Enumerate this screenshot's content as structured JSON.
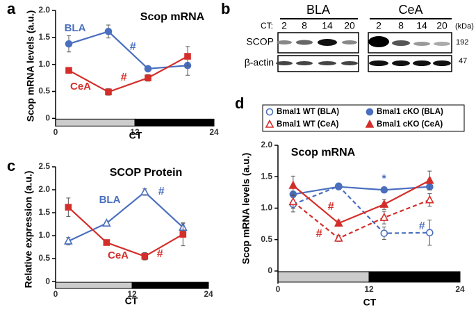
{
  "chart_data": [
    {
      "type": "line",
      "panel": "a",
      "title": "Scop mRNA",
      "ylabel": "Scop mRNA levels (a.u.)",
      "xlabel": "CT",
      "x": [
        2,
        8,
        14,
        20
      ],
      "xlim": [
        0,
        24
      ],
      "xticks": [
        0,
        12,
        24
      ],
      "ylim": [
        -0.15,
        2.0
      ],
      "yticks": [
        0,
        0.5,
        {
          "value": 1,
          "label": "1.0"
        },
        1.5,
        {
          "value": 2,
          "label": "2.0"
        }
      ],
      "phases": [
        {
          "start": 0,
          "end": 12,
          "color": "#cccccc"
        },
        {
          "start": 12,
          "end": 24,
          "color": "#000000"
        }
      ],
      "series": [
        {
          "name": "BLA",
          "color": "#4a6fbf",
          "marker": "circle-filled",
          "dash": false,
          "values": [
            1.38,
            1.61,
            0.92,
            0.98
          ],
          "errors": [
            0.15,
            0.12,
            0.05,
            0.18
          ]
        },
        {
          "name": "CeA",
          "color": "#d42e2a",
          "marker": "square-filled",
          "dash": false,
          "values": [
            0.89,
            0.49,
            0.75,
            1.15
          ],
          "errors": [
            0.04,
            0.06,
            0.06,
            0.18
          ]
        }
      ],
      "annotations": [
        {
          "text": "#",
          "color": "#4a6fbf"
        },
        {
          "text": "#",
          "color": "#d42e2a"
        }
      ]
    },
    {
      "type": "line",
      "panel": "c",
      "title": "SCOP Protein",
      "ylabel": "Relative expression (a.u.)",
      "xlabel": "CT",
      "x": [
        2,
        8,
        14,
        20
      ],
      "xlim": [
        0,
        24
      ],
      "xticks": [
        0,
        12,
        24
      ],
      "ylim": [
        -0.15,
        2.5
      ],
      "yticks": [
        0,
        0.5,
        {
          "value": 1,
          "label": "1.0"
        },
        1.5,
        {
          "value": 2,
          "label": "2.0"
        },
        2.5
      ],
      "phases": [
        {
          "start": 0,
          "end": 12,
          "color": "#cccccc"
        },
        {
          "start": 12,
          "end": 24,
          "color": "#000000"
        }
      ],
      "series": [
        {
          "name": "BLA",
          "color": "#4a6fbf",
          "marker": "triangle-open",
          "dash": false,
          "values": [
            0.88,
            1.27,
            1.95,
            1.18
          ],
          "errors": [
            0.08,
            0.03,
            0.07,
            0.08
          ]
        },
        {
          "name": "CeA",
          "color": "#d42e2a",
          "marker": "square-filled",
          "dash": false,
          "values": [
            1.62,
            0.85,
            0.55,
            1.03
          ],
          "errors": [
            0.2,
            0.03,
            0.08,
            0.25
          ]
        }
      ],
      "annotations": [
        {
          "text": "#",
          "color": "#4a6fbf"
        },
        {
          "text": "#",
          "color": "#d42e2a"
        }
      ]
    },
    {
      "type": "line",
      "panel": "d",
      "title": "Scop mRNA",
      "ylabel": "Scop mRNA levels (a.u.)",
      "xlabel": "CT",
      "x": [
        2,
        8,
        14,
        20
      ],
      "xlim": [
        0,
        24
      ],
      "xticks": [
        0,
        12,
        24
      ],
      "ylim": [
        -0.2,
        2.0
      ],
      "yticks": [
        0,
        0.5,
        {
          "value": 1,
          "label": "1.0"
        },
        1.5,
        {
          "value": 2,
          "label": "2.0"
        }
      ],
      "phases": [
        {
          "start": 0,
          "end": 12,
          "color": "#cccccc"
        },
        {
          "start": 12,
          "end": 24,
          "color": "#000000"
        }
      ],
      "series": [
        {
          "name": "Bmal1 WT (BLA)",
          "color": "#4a6fbf",
          "marker": "circle-open",
          "dash": true,
          "values": [
            1.06,
            1.35,
            0.6,
            0.61
          ],
          "errors": [
            0.12,
            0.03,
            0.1,
            0.2
          ]
        },
        {
          "name": "Bmal1 cKO (BLA)",
          "color": "#4a6fbf",
          "marker": "circle-filled",
          "dash": false,
          "values": [
            1.22,
            1.34,
            1.29,
            1.34
          ],
          "errors": [
            0.05,
            0.03,
            0.03,
            0.05
          ]
        },
        {
          "name": "Bmal1 WT (CeA)",
          "color": "#d42e2a",
          "marker": "triangle-open",
          "dash": true,
          "values": [
            1.1,
            0.52,
            0.85,
            1.13
          ],
          "errors": [
            0.1,
            0.05,
            0.1,
            0.1
          ]
        },
        {
          "name": "Bmal1 cKO (CeA)",
          "color": "#d42e2a",
          "marker": "triangle-filled",
          "dash": false,
          "values": [
            1.36,
            0.76,
            1.06,
            1.44
          ],
          "errors": [
            0.15,
            0.05,
            0.08,
            0.15
          ]
        }
      ],
      "legend": true,
      "annotations": [
        {
          "text": "*",
          "color": "#4a6fbf"
        },
        {
          "text": "#",
          "color": "#4a6fbf"
        },
        {
          "text": "#",
          "color": "#d42e2a"
        },
        {
          "text": "#",
          "color": "#d42e2a"
        }
      ]
    }
  ],
  "blot": {
    "panel": "b",
    "regions": [
      "BLA",
      "CeA"
    ],
    "ct_label": "CT:",
    "lanes": [
      "2",
      "8",
      "14",
      "20"
    ],
    "unit": "(kDa)",
    "rows": [
      {
        "name": "SCOP",
        "size": "192"
      },
      {
        "name": "β-actin",
        "size": "47"
      }
    ]
  }
}
